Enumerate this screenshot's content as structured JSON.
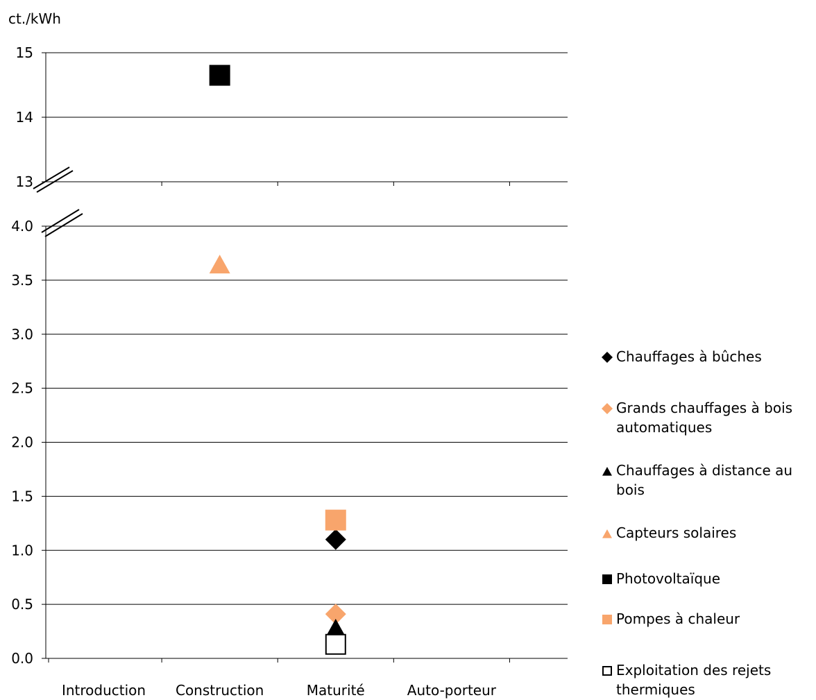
{
  "chart_data": {
    "type": "scatter",
    "unit_label": "ct./kWh",
    "categories": [
      "Introduction",
      "Construction",
      "Maturité",
      "Auto-porteur"
    ],
    "y_axis_upper": {
      "range": [
        13,
        15
      ],
      "ticks": [
        "13",
        "14",
        "15"
      ]
    },
    "y_axis_lower": {
      "range": [
        0,
        4
      ],
      "ticks": [
        "0.0",
        "0.5",
        "1.0",
        "1.5",
        "2.0",
        "2.5",
        "3.0",
        "3.5",
        "4.0"
      ]
    },
    "axis_break": true,
    "grid": true,
    "legend_position": "right",
    "series": [
      {
        "name": "Chauffages à bûches",
        "category": "Maturité",
        "value": 1.1,
        "marker": "diamond",
        "color": "#000000"
      },
      {
        "name": "Grands chauffages à bois automatiques",
        "category": "Maturité",
        "value": 0.41,
        "marker": "diamond",
        "color": "#F8A56C"
      },
      {
        "name": "Chauffages à distance au bois",
        "category": "Maturité",
        "value": 0.27,
        "marker": "triangle",
        "color": "#000000"
      },
      {
        "name": "Capteurs solaires",
        "category": "Construction",
        "value": 3.64,
        "marker": "triangle",
        "color": "#F8A56C"
      },
      {
        "name": "Photovoltaïque",
        "category": "Construction",
        "value": 14.65,
        "marker": "square",
        "color": "#000000"
      },
      {
        "name": "Pompes à chaleur",
        "category": "Maturité",
        "value": 1.28,
        "marker": "square",
        "color": "#F8A56C"
      },
      {
        "name": "Exploitation des rejets thermiques",
        "category": "Maturité",
        "value": 0.13,
        "marker": "square-open",
        "color": "#000000"
      }
    ]
  }
}
